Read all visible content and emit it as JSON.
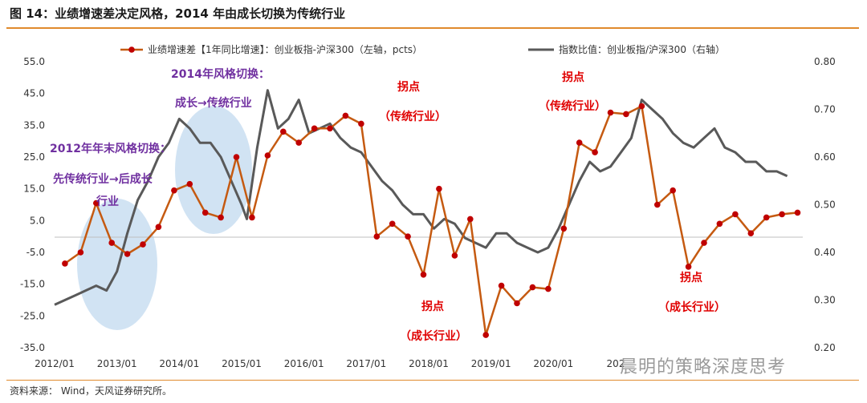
{
  "title": "图 14：业绩增速差决定风格，2014 年由成长切换为传统行业",
  "source": "资料来源：  Wind，天风证券研究所。",
  "watermark": "晨明的策略深度思考",
  "chart_data": {
    "type": "line",
    "x_ticks": [
      "2012/01",
      "2013/01",
      "2014/01",
      "2015/01",
      "2016/01",
      "2017/01",
      "2018/01",
      "2019/01",
      "2020/01",
      "202"
    ],
    "y_left": {
      "range": [
        -35,
        55
      ],
      "ticks": [
        "55.0",
        "45.0",
        "35.0",
        "25.0",
        "15.0",
        "5.0",
        "-5.0",
        "-15.0",
        "-25.0",
        "-35.0"
      ]
    },
    "y_right": {
      "range": [
        0.2,
        0.8
      ],
      "ticks": [
        "0.80",
        "0.70",
        "0.60",
        "0.50",
        "0.40",
        "0.30",
        "0.20"
      ]
    },
    "colors": {
      "growth_gap": "#c55a11",
      "marker": "#c00000",
      "index_ratio": "#595959",
      "ellipse": "#bdd7ee"
    },
    "series": [
      {
        "name": "业绩增速差【1年同比增速】：创业板指-沪深300（左轴，pcts）",
        "axis": "left",
        "x": [
          "2012-03",
          "2012-06",
          "2012-09",
          "2012-12",
          "2013-03",
          "2013-06",
          "2013-09",
          "2013-12",
          "2014-03",
          "2014-06",
          "2014-09",
          "2014-12",
          "2015-03",
          "2015-06",
          "2015-09",
          "2015-12",
          "2016-03",
          "2016-06",
          "2016-09",
          "2016-12",
          "2017-03",
          "2017-06",
          "2017-09",
          "2017-12",
          "2018-03",
          "2018-06",
          "2018-09",
          "2018-12",
          "2019-03",
          "2019-06",
          "2019-09",
          "2019-12",
          "2020-03",
          "2020-06",
          "2020-09",
          "2020-12",
          "2021-03",
          "2021-06",
          "2021-09",
          "2021-12",
          "2022-03",
          "2022-06",
          "2022-09",
          "2022-12",
          "2023-03",
          "2023-06",
          "2023-09",
          "2023-12"
        ],
        "values": [
          -8.5,
          -5,
          10.5,
          -2,
          -5.5,
          -2.5,
          3,
          14.5,
          16.5,
          7.5,
          6,
          25,
          6,
          25.5,
          33,
          29.5,
          34,
          34,
          38,
          35.5,
          0,
          4,
          0,
          -12,
          15,
          -6,
          5.5,
          -31,
          -15.5,
          -21,
          -16,
          -16.5,
          2.5,
          29.5,
          26.5,
          39,
          38.5,
          41,
          10,
          14.5,
          -9.5,
          -2,
          4,
          7,
          1,
          6,
          7,
          7.5
        ]
      },
      {
        "name": "指数比值：创业板指/沪深300（右轴）",
        "axis": "right",
        "x": [
          "2012-01",
          "2012-03",
          "2012-05",
          "2012-07",
          "2012-09",
          "2012-11",
          "2013-01",
          "2013-03",
          "2013-05",
          "2013-07",
          "2013-09",
          "2013-11",
          "2014-01",
          "2014-03",
          "2014-05",
          "2014-07",
          "2014-09",
          "2014-11",
          "2015-01",
          "2015-02",
          "2015-04",
          "2015-06",
          "2015-08",
          "2015-10",
          "2015-12",
          "2016-02",
          "2016-04",
          "2016-06",
          "2016-08",
          "2016-10",
          "2016-12",
          "2017-02",
          "2017-04",
          "2017-06",
          "2017-08",
          "2017-10",
          "2017-12",
          "2018-02",
          "2018-04",
          "2018-06",
          "2018-08",
          "2018-10",
          "2018-12",
          "2019-02",
          "2019-04",
          "2019-06",
          "2019-08",
          "2019-10",
          "2019-12",
          "2020-02",
          "2020-04",
          "2020-06",
          "2020-08",
          "2020-10",
          "2020-12",
          "2021-02",
          "2021-04",
          "2021-06",
          "2021-08",
          "2021-10",
          "2021-12",
          "2022-02",
          "2022-04",
          "2022-06",
          "2022-08",
          "2022-10",
          "2022-12",
          "2023-02",
          "2023-04",
          "2023-06",
          "2023-08",
          "2023-10"
        ],
        "values": [
          0.29,
          0.3,
          0.31,
          0.32,
          0.33,
          0.32,
          0.36,
          0.44,
          0.51,
          0.55,
          0.6,
          0.63,
          0.68,
          0.66,
          0.63,
          0.63,
          0.6,
          0.55,
          0.5,
          0.47,
          0.62,
          0.74,
          0.66,
          0.68,
          0.72,
          0.65,
          0.66,
          0.67,
          0.64,
          0.62,
          0.61,
          0.58,
          0.55,
          0.53,
          0.5,
          0.48,
          0.48,
          0.45,
          0.47,
          0.46,
          0.43,
          0.42,
          0.41,
          0.44,
          0.44,
          0.42,
          0.41,
          0.4,
          0.41,
          0.45,
          0.5,
          0.55,
          0.59,
          0.57,
          0.58,
          0.61,
          0.64,
          0.72,
          0.7,
          0.68,
          0.65,
          0.63,
          0.62,
          0.64,
          0.66,
          0.62,
          0.61,
          0.59,
          0.59,
          0.57,
          0.57,
          0.56
        ]
      }
    ],
    "annotations": [
      {
        "text": "2014年风格切换：",
        "color": "purple"
      },
      {
        "text": "成长→传统行业",
        "color": "purple"
      },
      {
        "text": "2012年年末风格切换：",
        "color": "purple"
      },
      {
        "text": "先传统行业→后成长",
        "color": "purple"
      },
      {
        "text": "行业",
        "color": "purple"
      },
      {
        "text": "拐点",
        "color": "red"
      },
      {
        "text": "（传统行业）",
        "color": "red"
      },
      {
        "text": "拐点",
        "color": "red"
      },
      {
        "text": "（传统行业）",
        "color": "red"
      },
      {
        "text": "拐点",
        "color": "red"
      },
      {
        "text": "（成长行业）",
        "color": "red"
      },
      {
        "text": "拐点",
        "color": "red"
      },
      {
        "text": "（成长行业）",
        "color": "red"
      }
    ]
  }
}
